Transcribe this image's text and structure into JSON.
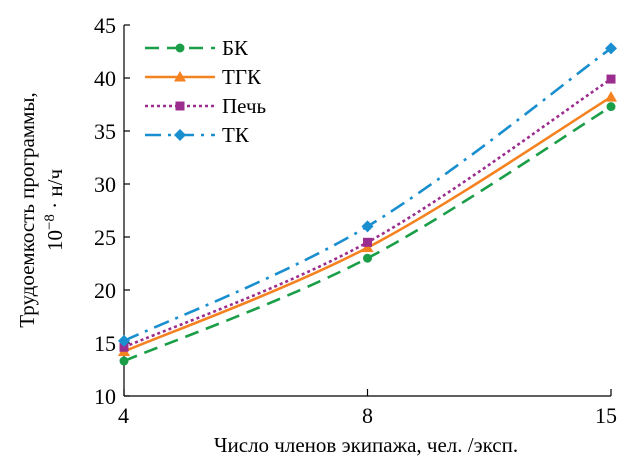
{
  "chart_data": {
    "type": "line",
    "x": [
      4,
      8,
      15
    ],
    "xticks": [
      "4",
      "8",
      "15"
    ],
    "yticks": [
      "10",
      "15",
      "20",
      "25",
      "30",
      "35",
      "40",
      "45"
    ],
    "xlim": [
      4,
      15
    ],
    "ylim": [
      10,
      45
    ],
    "xlabel": "Число членов экипажа, чел. /эксп.",
    "ylabel_line1": "Трудоемкость программы,",
    "ylabel_line2_base": "10",
    "ylabel_line2_exp": "−8",
    "ylabel_line2_rest": " · н/ч",
    "grid": false,
    "legend_position": "top-left",
    "series": [
      {
        "name": "БК",
        "values": [
          13.3,
          23.0,
          37.3
        ],
        "color": "#1a9e48",
        "dash": "14,8",
        "marker": "circle"
      },
      {
        "name": "ТГК",
        "values": [
          14.2,
          24.0,
          38.2
        ],
        "color": "#f58220",
        "dash": "",
        "marker": "triangle"
      },
      {
        "name": "Печь",
        "values": [
          14.6,
          24.5,
          39.9
        ],
        "color": "#9b2d8e",
        "dash": "3,3",
        "marker": "square"
      },
      {
        "name": "ТК",
        "values": [
          15.2,
          26.0,
          42.8
        ],
        "color": "#1a8fd0",
        "dash": "16,7,3,7",
        "marker": "diamond"
      }
    ]
  }
}
